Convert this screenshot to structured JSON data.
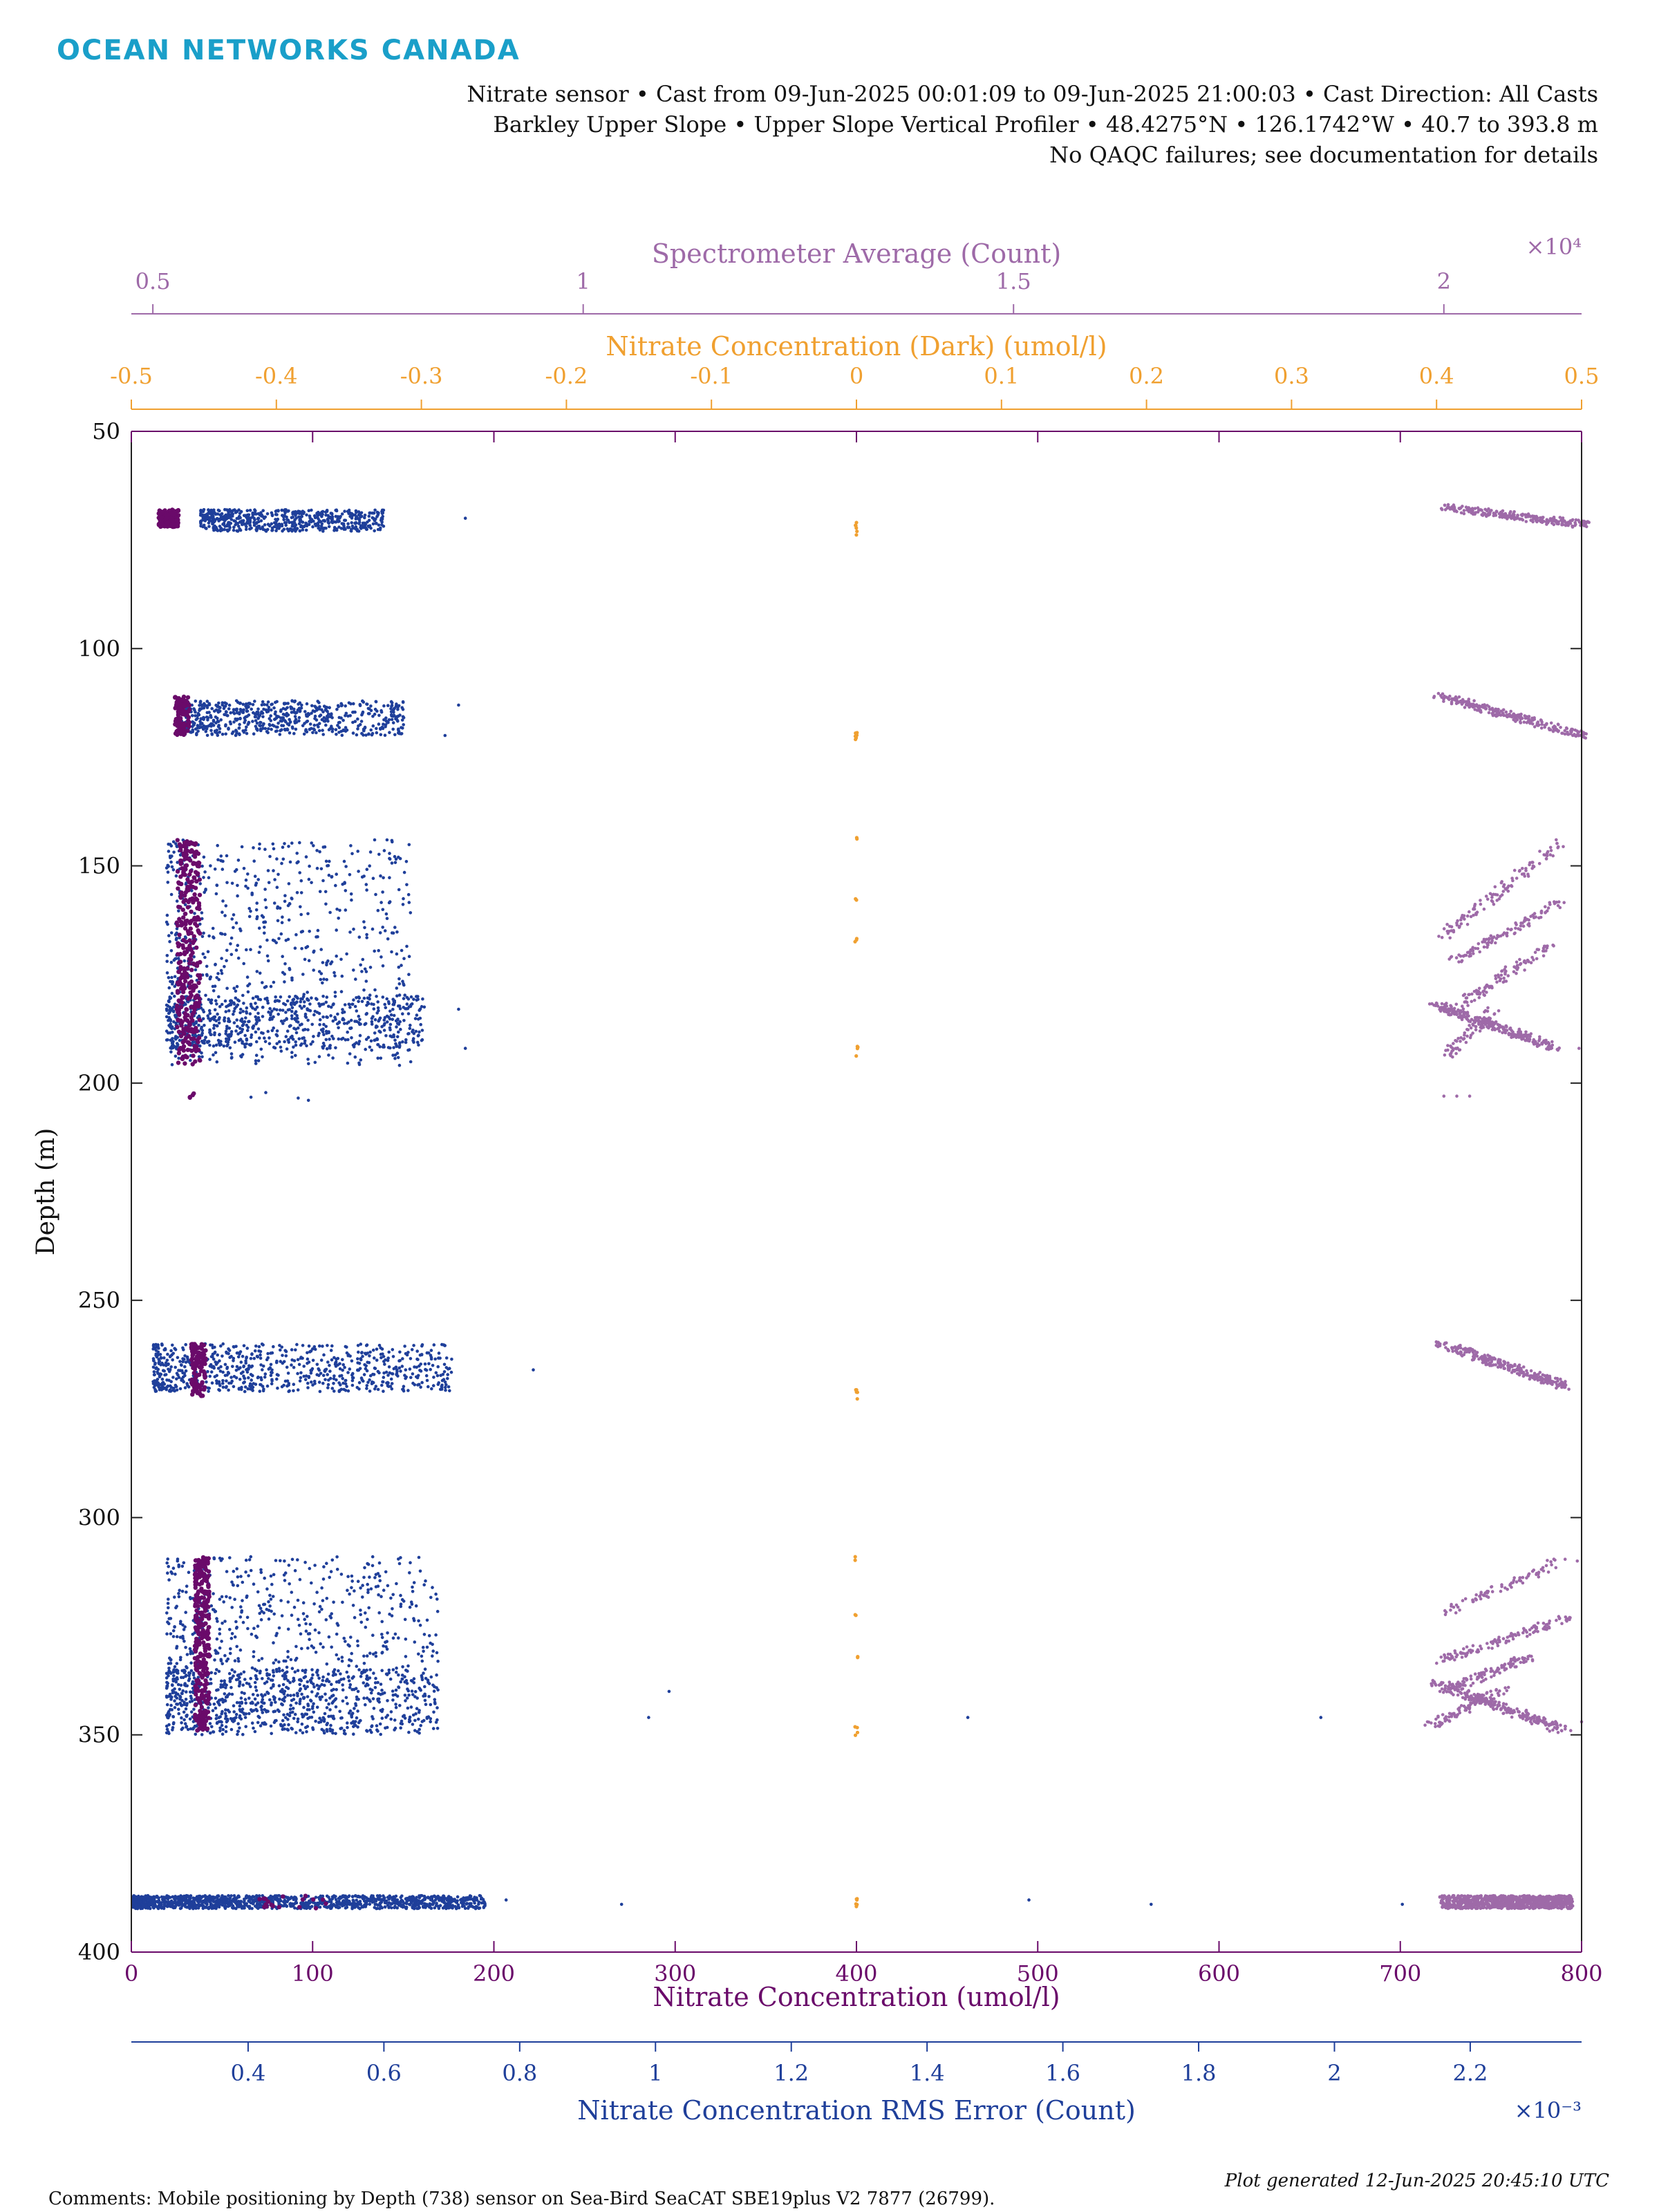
{
  "header": {
    "brand": "OCEAN NETWORKS CANADA",
    "line1": "Nitrate sensor • Cast from 09-Jun-2025 00:01:09 to 09-Jun-2025 21:00:03 • Cast Direction: All Casts",
    "line2": "Barkley Upper Slope • Upper Slope Vertical Profiler • 48.4275°N • 126.1742°W • 40.7 to 393.8 m",
    "line3": "No QAQC failures; see documentation for details"
  },
  "footer": {
    "comments": "Comments: Mobile positioning by Depth (738) sensor on Sea-Bird SeaCAT SBE19plus V2 7877 (26799).",
    "generated": "Plot generated 12-Jun-2025 20:45:10 UTC"
  },
  "colors": {
    "nitrate": "#6a0a6a",
    "rms": "#1f3f9a",
    "dark": "#f0a030",
    "spectrometer": "#9e6aa8",
    "frame": "#222222"
  },
  "chart_data": {
    "type": "scatter",
    "ylabel": "Depth (m)",
    "ylim": [
      50,
      400
    ],
    "y_reversed": true,
    "yticks": [
      50,
      100,
      150,
      200,
      250,
      300,
      350,
      400
    ],
    "axes": {
      "nitrate": {
        "label": "Nitrate Concentration (umol/l)",
        "lim": [
          0,
          800
        ],
        "ticks": [
          0,
          100,
          200,
          300,
          400,
          500,
          600,
          700,
          800
        ],
        "tick_labels": [
          "0",
          "100",
          "200",
          "300",
          "400",
          "500",
          "600",
          "700",
          "800"
        ]
      },
      "rms": {
        "label": "Nitrate Concentration RMS Error (Count)",
        "lim": [
          0.000228,
          0.002364
        ],
        "ticks": [
          0.0004,
          0.0006,
          0.0008,
          0.001,
          0.0012,
          0.0014,
          0.0016,
          0.0018,
          0.002,
          0.0022
        ],
        "tick_labels": [
          "0.4",
          "0.6",
          "0.8",
          "1",
          "1.2",
          "1.4",
          "1.6",
          "1.8",
          "2",
          "2.2"
        ],
        "exponent": "×10⁻³"
      },
      "dark": {
        "label": "Nitrate Concentration (Dark) (umol/l)",
        "lim": [
          -0.5,
          0.5
        ],
        "ticks": [
          -0.5,
          -0.4,
          -0.3,
          -0.2,
          -0.1,
          0,
          0.1,
          0.2,
          0.3,
          0.4,
          0.5
        ],
        "tick_labels": [
          "-0.5",
          "-0.4",
          "-0.3",
          "-0.2",
          "-0.1",
          "0",
          "0.1",
          "0.2",
          "0.3",
          "0.4",
          "0.5"
        ]
      },
      "spectrometer": {
        "label": "Spectrometer Average (Count)",
        "lim": [
          4750,
          21600
        ],
        "ticks": [
          5000,
          10000,
          15000,
          20000
        ],
        "tick_labels": [
          "0.5",
          "1",
          "1.5",
          "2"
        ],
        "exponent": "×10⁴"
      }
    },
    "series": [
      {
        "name": "Nitrate Concentration (umol/l)",
        "axis": "nitrate",
        "clusters": [
          {
            "y": [
              68,
              72
            ],
            "x": [
              15,
              26
            ],
            "n": 140
          },
          {
            "y": [
              111,
              120
            ],
            "x": [
              24,
              32
            ],
            "n": 110
          },
          {
            "y": [
              144,
              196
            ],
            "x": [
              25,
              38
            ],
            "n": 330
          },
          {
            "y": [
              202,
              204
            ],
            "x": [
              32,
              36
            ],
            "n": 4
          },
          {
            "y": [
              260,
              272
            ],
            "x": [
              33,
              41
            ],
            "n": 110
          },
          {
            "y": [
              309,
              349
            ],
            "x": [
              35,
              43
            ],
            "n": 300
          },
          {
            "y": [
              387,
              390
            ],
            "x": [
              70,
              110
            ],
            "n": 20
          }
        ]
      },
      {
        "name": "Nitrate Concentration RMS Error (Count)",
        "axis": "rms",
        "clusters": [
          {
            "y": [
              68,
              73
            ],
            "x": [
              0.00033,
              0.0006
            ],
            "n": 600
          },
          {
            "y": [
              112,
              120
            ],
            "x": [
              0.0003,
              0.00063
            ],
            "n": 650
          },
          {
            "y": [
              144,
              196
            ],
            "x": [
              0.00028,
              0.00064
            ],
            "n": 750
          },
          {
            "y": [
              180,
              192
            ],
            "x": [
              0.00028,
              0.00066
            ],
            "n": 600
          },
          {
            "y": [
              202,
              204
            ],
            "x": [
              0.0004,
              0.0005
            ],
            "n": 4
          },
          {
            "y": [
              260,
              271
            ],
            "x": [
              0.00026,
              0.0007
            ],
            "n": 750
          },
          {
            "y": [
              309,
              349
            ],
            "x": [
              0.00028,
              0.00068
            ],
            "n": 700
          },
          {
            "y": [
              335,
              350
            ],
            "x": [
              0.00028,
              0.00068
            ],
            "n": 650
          },
          {
            "y": [
              387,
              390
            ],
            "x": [
              0.00023,
              0.00075
            ],
            "n": 1300
          }
        ],
        "outliers": [
          [
            0.00072,
            70
          ],
          [
            0.00071,
            113
          ],
          [
            0.00069,
            120
          ],
          [
            0.00071,
            183
          ],
          [
            0.00072,
            192
          ],
          [
            0.00082,
            266
          ],
          [
            0.00099,
            346
          ],
          [
            0.00102,
            340
          ],
          [
            0.00078,
            388
          ],
          [
            0.00095,
            389
          ],
          [
            0.00146,
            346
          ],
          [
            0.00155,
            388
          ],
          [
            0.00173,
            389
          ],
          [
            0.00198,
            346
          ],
          [
            0.0021,
            389
          ]
        ]
      },
      {
        "name": "Nitrate Concentration (Dark) (umol/l)",
        "axis": "dark",
        "clusters": [
          {
            "y": [
              71,
              74
            ],
            "x": [
              -0.001,
              0.001
            ],
            "n": 6
          },
          {
            "y": [
              119,
              121
            ],
            "x": [
              -0.001,
              0.001
            ],
            "n": 6
          },
          {
            "y": [
              143,
              144
            ],
            "x": [
              -0.001,
              0.001
            ],
            "n": 2
          },
          {
            "y": [
              157,
              158
            ],
            "x": [
              -0.001,
              0.001
            ],
            "n": 2
          },
          {
            "y": [
              166,
              168
            ],
            "x": [
              -0.001,
              0.001
            ],
            "n": 3
          },
          {
            "y": [
              191,
              194
            ],
            "x": [
              -0.001,
              0.001
            ],
            "n": 4
          },
          {
            "y": [
              270,
              273
            ],
            "x": [
              -0.001,
              0.001
            ],
            "n": 5
          },
          {
            "y": [
              309,
              310
            ],
            "x": [
              -0.001,
              0.001
            ],
            "n": 2
          },
          {
            "y": [
              322,
              323
            ],
            "x": [
              -0.001,
              0.001
            ],
            "n": 2
          },
          {
            "y": [
              332,
              333
            ],
            "x": [
              -0.001,
              0.001
            ],
            "n": 2
          },
          {
            "y": [
              348,
              351
            ],
            "x": [
              -0.001,
              0.001
            ],
            "n": 4
          },
          {
            "y": [
              386,
              390
            ],
            "x": [
              -0.001,
              0.001
            ],
            "n": 6
          }
        ]
      },
      {
        "name": "Spectrometer Average (Count)",
        "axis": "spectrometer",
        "tracks": [
          {
            "x": [
              20000,
              21650
            ],
            "y": [
              67.5,
              71.5
            ],
            "n": 260
          },
          {
            "x": [
              19950,
              21620
            ],
            "y": [
              111,
              120
            ],
            "n": 260
          },
          {
            "x": [
              19950,
              21400
            ],
            "y": [
              167,
              144
            ],
            "n": 110
          },
          {
            "x": [
              20100,
              21400
            ],
            "y": [
              172,
              158
            ],
            "n": 110
          },
          {
            "x": [
              20050,
              21250
            ],
            "y": [
              184,
              168
            ],
            "n": 110
          },
          {
            "x": [
              19900,
              21300
            ],
            "y": [
              182,
              192
            ],
            "n": 240
          },
          {
            "x": [
              19950,
              20600
            ],
            "y": [
              195,
              183
            ],
            "n": 70
          },
          {
            "x": [
              19950,
              21450
            ],
            "y": [
              260,
              270
            ],
            "n": 260
          },
          {
            "x": [
              20000,
              21350
            ],
            "y": [
              322,
              310
            ],
            "n": 80
          },
          {
            "x": [
              19950,
              21450
            ],
            "y": [
              333,
              323
            ],
            "n": 120
          },
          {
            "x": [
              20000,
              21000
            ],
            "y": [
              340,
              332
            ],
            "n": 110
          },
          {
            "x": [
              19900,
              21400
            ],
            "y": [
              338,
              349
            ],
            "n": 230
          },
          {
            "x": [
              19850,
              20700
            ],
            "y": [
              348,
              339
            ],
            "n": 90
          }
        ],
        "clusters": [
          {
            "y": [
              387,
              390
            ],
            "x": [
              19950,
              21500
            ],
            "n": 900
          }
        ],
        "outliers": [
          [
            20000,
            203
          ],
          [
            20150,
            203
          ],
          [
            20300,
            203
          ],
          [
            21570,
            192
          ],
          [
            21550,
            310
          ],
          [
            21600,
            347
          ]
        ]
      }
    ]
  }
}
